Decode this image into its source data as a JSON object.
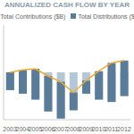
{
  "chart_data": {
    "type": "bar",
    "title": "ANNUALIZED CASH FLOW BY YEAR",
    "categories": [
      "2003",
      "2004",
      "2005",
      "2006",
      "2007",
      "2008",
      "2009",
      "2010",
      "2011",
      "2012"
    ],
    "series": [
      {
        "name": "Total Contributions ($B)",
        "type": "bar",
        "color": "#b4c7d9",
        "values": [
          -150,
          -180,
          -230,
          -330,
          -390,
          -320,
          -180,
          -230,
          -250,
          -200
        ]
      },
      {
        "name": "Total Distributions ($B)",
        "type": "bar",
        "color": "#5b7c99",
        "values": [
          150,
          200,
          260,
          300,
          310,
          150,
          110,
          240,
          330,
          300
        ]
      },
      {
        "type": "line",
        "color": "#f0a830",
        "values": [
          0,
          20,
          30,
          -30,
          -80,
          -170,
          -70,
          10,
          80,
          100
        ],
        "marker": "none"
      }
    ],
    "ylim": [
      -400,
      400
    ],
    "yticks": [
      -400,
      -200,
      0,
      200,
      400
    ],
    "stacked": true,
    "grid": false,
    "tick_labels": "x",
    "legend": "top"
  }
}
